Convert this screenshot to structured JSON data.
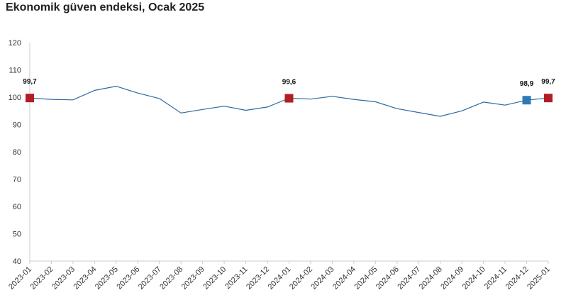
{
  "chart_data": {
    "type": "line",
    "title": "Ekonomik güven endeksi, Ocak 2025",
    "xlabel": "",
    "ylabel": "",
    "ylim": [
      40,
      120
    ],
    "yticks": [
      40,
      50,
      60,
      70,
      80,
      90,
      100,
      110,
      120
    ],
    "grid": false,
    "categories": [
      "2023-01",
      "2023-02",
      "2023-03",
      "2023-04",
      "2023-05",
      "2023-06",
      "2023-07",
      "2023-08",
      "2023-09",
      "2023-10",
      "2023-11",
      "2023-12",
      "2024-01",
      "2024-02",
      "2024-03",
      "2024-04",
      "2024-05",
      "2024-06",
      "2024-07",
      "2024-08",
      "2024-09",
      "2024-10",
      "2024-11",
      "2024-12",
      "2025-01"
    ],
    "series": [
      {
        "values": [
          99.7,
          99.2,
          99.0,
          102.5,
          104.0,
          101.5,
          99.5,
          94.2,
          95.5,
          96.7,
          95.2,
          96.4,
          99.6,
          99.3,
          100.3,
          99.2,
          98.3,
          95.8,
          94.4,
          93.0,
          95.0,
          98.2,
          97.1,
          98.9,
          99.7
        ],
        "color": "#2b6aa3"
      }
    ],
    "highlights": [
      {
        "index": 0,
        "label": "99,7",
        "color": "#b01f24"
      },
      {
        "index": 12,
        "label": "99,6",
        "color": "#b01f24"
      },
      {
        "index": 23,
        "label": "98,9",
        "color": "#2e7ab5"
      },
      {
        "index": 24,
        "label": "99,7",
        "color": "#b01f24"
      }
    ]
  }
}
